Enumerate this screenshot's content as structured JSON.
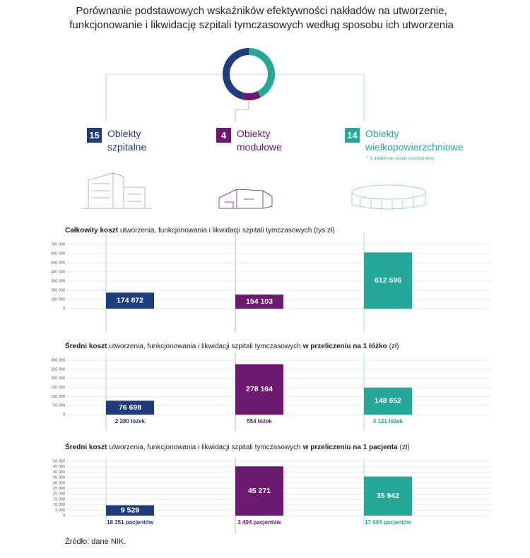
{
  "title_lines": [
    "Porównanie podstawowych wskaźników efektywności nakładów na utworzenie,",
    "funkcjonowanie i likwidację szpitali tymczasowych według sposobu ich utworzenia"
  ],
  "source": "Źródło: dane NIK.",
  "chart_data": [
    {
      "type": "pie",
      "categories": [
        "Obiekty szpitalne",
        "Obiekty modułowe",
        "Obiekty wielkopowierzchniowe"
      ],
      "values": [
        15,
        4,
        14
      ],
      "colors": [
        "#1f3c7c",
        "#6b1a6f",
        "#25a898"
      ],
      "note": "* 1 obiekt nie został uruchomiony"
    },
    {
      "type": "bar",
      "title_parts": [
        "Całkowity koszt",
        "utworzenia, funkcjonowania i likwidacji szpitali tymczasowych (tys zł)"
      ],
      "title_bold": [
        true,
        false
      ],
      "categories": [
        null,
        null,
        null
      ],
      "values": [
        174872,
        154103,
        612596
      ],
      "value_labels": [
        "174 872",
        "154 103",
        "612 596"
      ],
      "colors": [
        "#1f3c7c",
        "#6b1a6f",
        "#25a898"
      ],
      "ylim": [
        0,
        700000
      ],
      "yticks": [
        0,
        {
          "value": 100000,
          "label": "100 000"
        },
        {
          "value": 200000,
          "label": "200 000"
        },
        {
          "value": 300000,
          "label": "300 000"
        },
        {
          "value": 400000,
          "label": "400 000"
        },
        {
          "value": 500000,
          "label": "500 000"
        },
        {
          "value": 600000,
          "label": "600 000"
        },
        {
          "value": 700000,
          "label": "700 000"
        }
      ],
      "grid": true
    },
    {
      "type": "bar",
      "title_parts": [
        "Średni koszt",
        "utworzenia, funkcjonowania i likwidacji szpitali tymczasowych",
        "w przeliczeniu na 1 łóżko",
        "(zł)"
      ],
      "title_bold": [
        true,
        false,
        true,
        false
      ],
      "categories": [
        null,
        null,
        null
      ],
      "values": [
        76698,
        278164,
        148652
      ],
      "value_labels": [
        "76 698",
        "278 164",
        "148 652"
      ],
      "sublabels": [
        "2 280 łóżek",
        "554 łóżek",
        "4 121 łóżek"
      ],
      "colors": [
        "#1f3c7c",
        "#6b1a6f",
        "#25a898"
      ],
      "ylim": [
        0,
        300000
      ],
      "yticks": [
        0,
        {
          "value": 50000,
          "label": "50 000"
        },
        {
          "value": 100000,
          "label": "100 000"
        },
        {
          "value": 150000,
          "label": "150 000"
        },
        {
          "value": 200000,
          "label": "200 000"
        },
        {
          "value": 250000,
          "label": "250 000"
        },
        {
          "value": 300000,
          "label": "300 000"
        }
      ],
      "grid": true
    },
    {
      "type": "bar",
      "title_parts": [
        "Średni koszt",
        "utworzenia, funkcjonowania i likwidacji szpitali tymczasowych",
        "w przeliczeniu na 1 pacjenta",
        "(zł)"
      ],
      "title_bold": [
        true,
        false,
        true,
        false
      ],
      "categories": [
        null,
        null,
        null
      ],
      "values": [
        9529,
        45271,
        35942
      ],
      "value_labels": [
        "9 529",
        "45 271",
        "35 942"
      ],
      "sublabels": [
        "18 351 pacjentów",
        "3 404 pacjentów",
        "17 044 pacjentów"
      ],
      "colors": [
        "#1f3c7c",
        "#6b1a6f",
        "#25a898"
      ],
      "ylim": [
        0,
        50000
      ],
      "yticks": [
        0,
        {
          "value": 5000,
          "label": "5 000"
        },
        {
          "value": 10000,
          "label": "10 000"
        },
        {
          "value": 15000,
          "label": "15 000"
        },
        {
          "value": 20000,
          "label": "20 000"
        },
        {
          "value": 25000,
          "label": "25 000"
        },
        {
          "value": 30000,
          "label": "30 000"
        },
        {
          "value": 35000,
          "label": "35 000"
        },
        {
          "value": 40000,
          "label": "40 000"
        },
        {
          "value": 45000,
          "label": "45 000"
        },
        {
          "value": 50000,
          "label": "50 000"
        }
      ],
      "grid": true
    }
  ]
}
